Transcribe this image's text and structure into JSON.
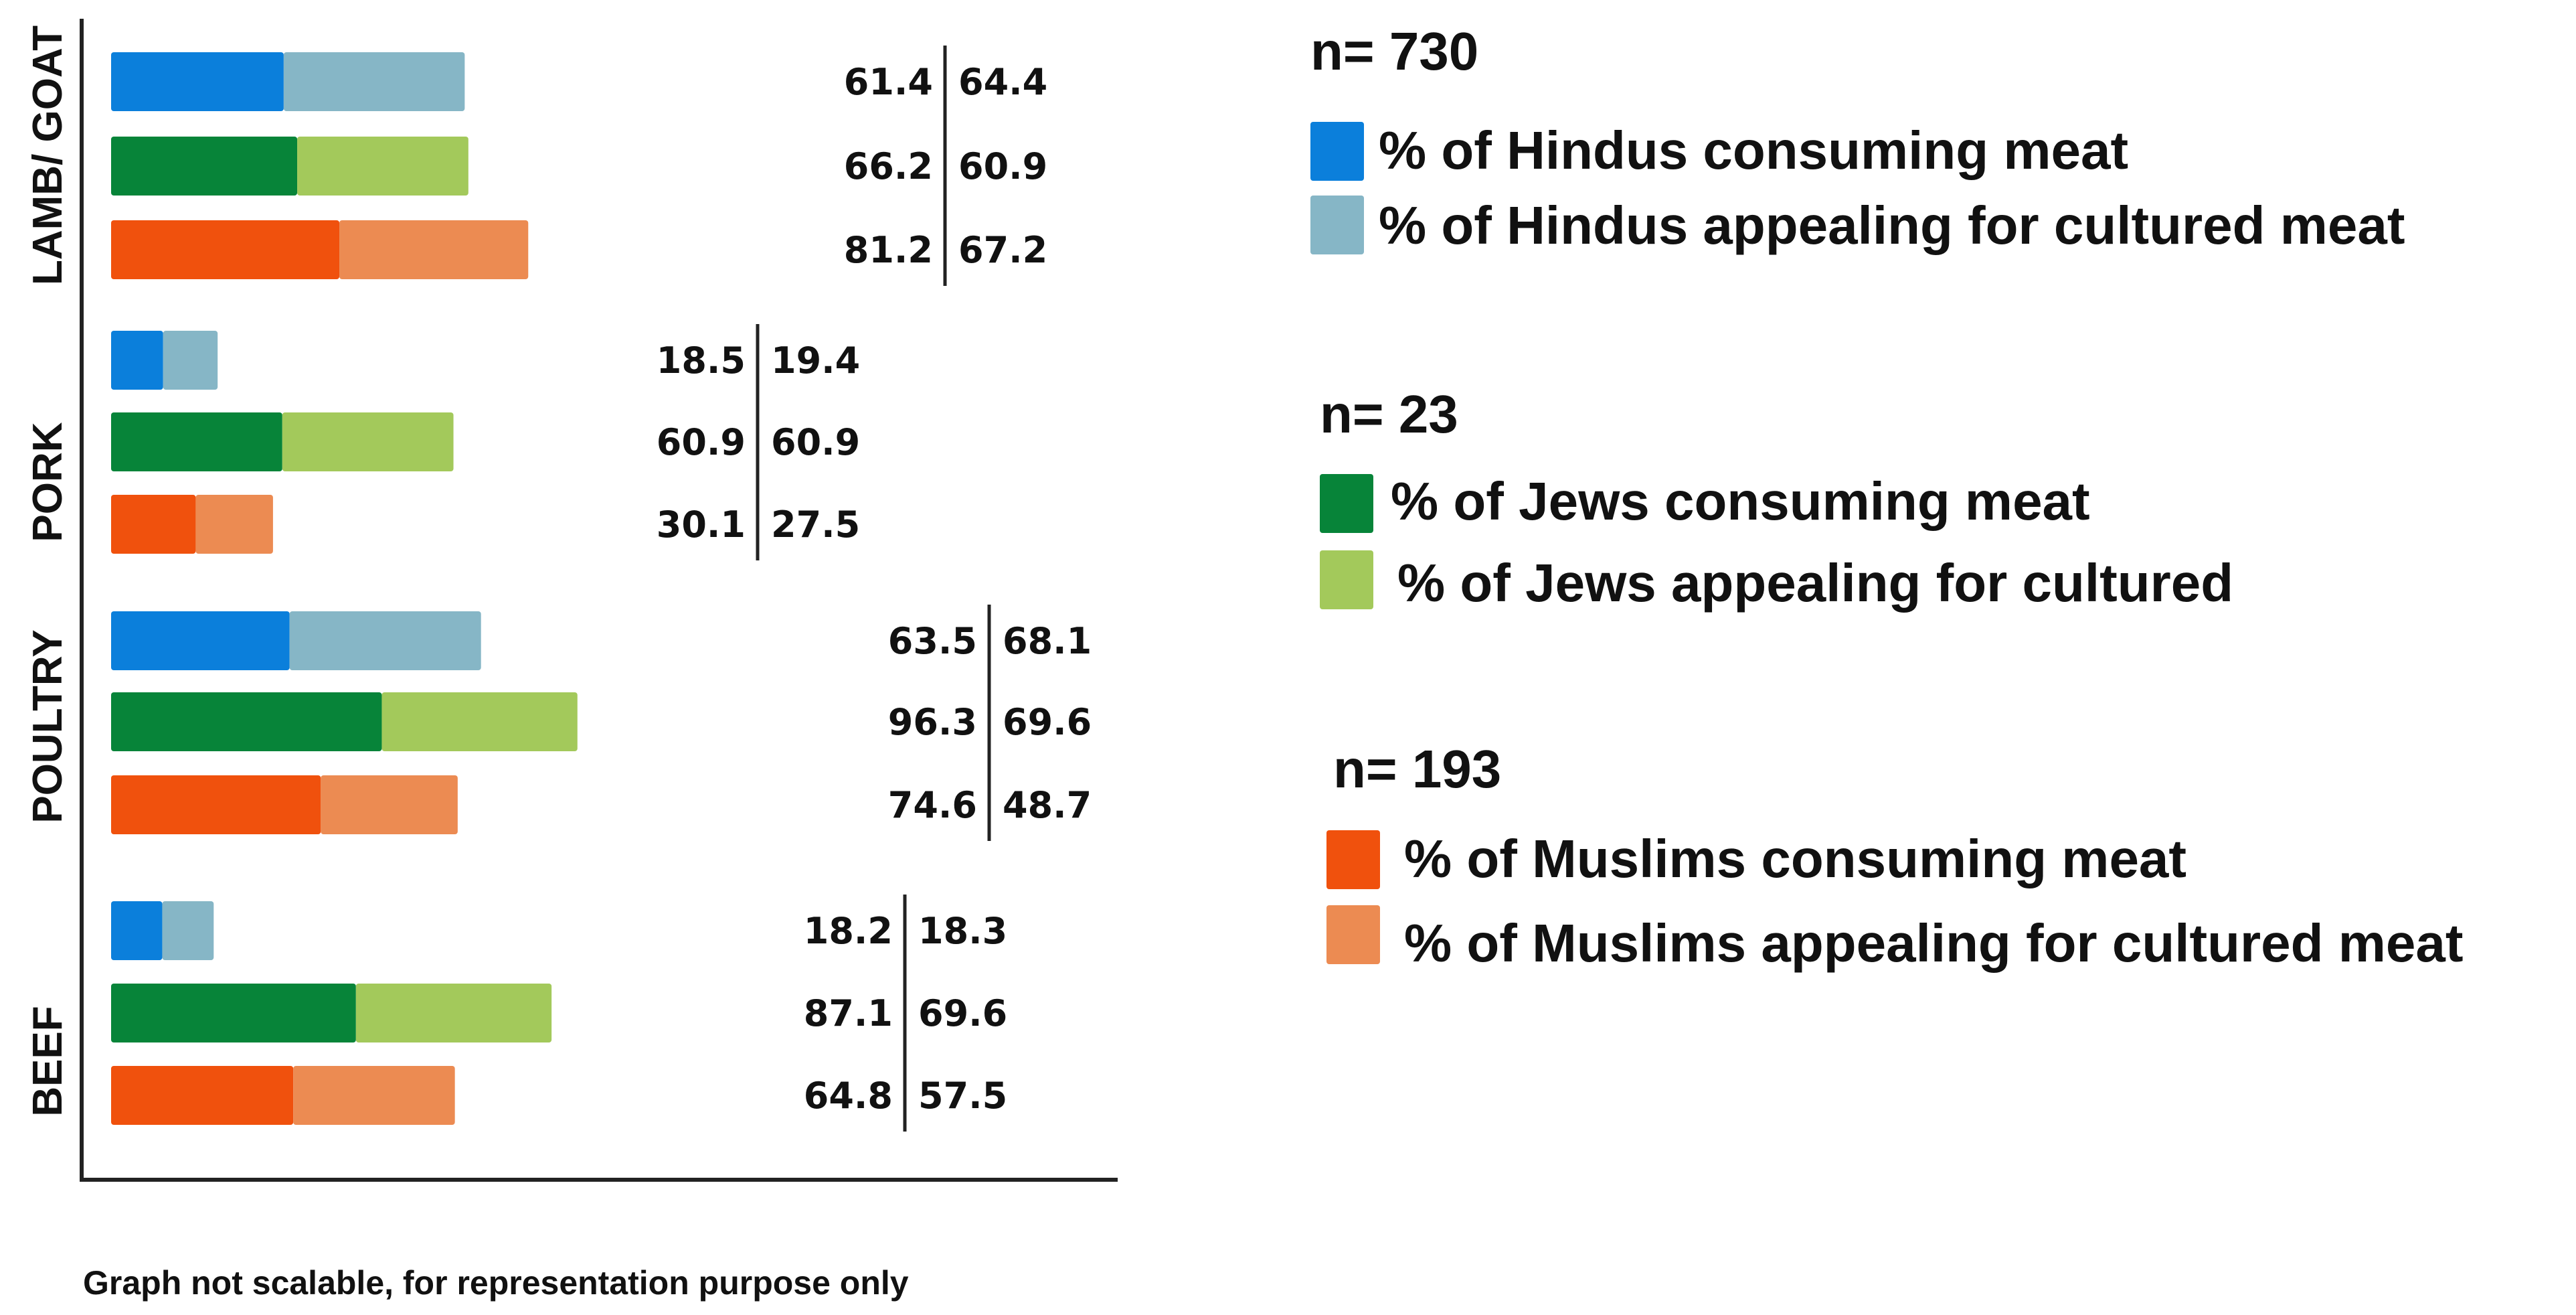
{
  "chart_data": {
    "type": "bar",
    "orientation": "horizontal",
    "stacked_pairs": true,
    "categories": [
      "LAMB/ GOAT",
      "PORK",
      "POULTRY",
      "BEEF"
    ],
    "groups": [
      {
        "name": "Hindus",
        "n_label": "n= 730",
        "consuming_label": "% of Hindus consuming meat",
        "appealing_label": "% of Hindus appealing for cultured meat",
        "colors": {
          "consuming": "#0B7FDB",
          "appealing": "#86B6C6"
        },
        "consuming": [
          61.4,
          18.5,
          63.5,
          18.2
        ],
        "appealing": [
          64.4,
          19.4,
          68.1,
          18.3
        ]
      },
      {
        "name": "Jews",
        "n_label": "n= 23",
        "consuming_label": "% of Jews consuming meat",
        "appealing_label": "% of Jews appealing for cultured",
        "colors": {
          "consuming": "#078439",
          "appealing": "#A3C95B"
        },
        "consuming": [
          66.2,
          60.9,
          96.3,
          87.1
        ],
        "appealing": [
          60.9,
          60.9,
          69.6,
          69.6
        ]
      },
      {
        "name": "Muslims",
        "n_label": "n= 193",
        "consuming_label": "% of Muslims consuming meat",
        "appealing_label": "% of Muslims appealing for cultured meat",
        "colors": {
          "consuming": "#F0510D",
          "appealing": "#EC8B52"
        },
        "consuming": [
          81.2,
          30.1,
          74.6,
          64.8
        ],
        "appealing": [
          67.2,
          27.5,
          48.7,
          57.5
        ]
      }
    ],
    "value_labels": {
      "consuming": [
        [
          "61.4",
          "66.2",
          "81.2"
        ],
        [
          "18.5",
          "60.9",
          "30.1"
        ],
        [
          "63.5",
          "96.3",
          "74.6"
        ],
        [
          "18.2",
          "87.1",
          "64.8"
        ]
      ],
      "appealing": [
        [
          "64.4",
          "60.9",
          "67.2"
        ],
        [
          "19.4",
          "60.9",
          "27.5"
        ],
        [
          "68.1",
          "69.6",
          "48.7"
        ],
        [
          "18.3",
          "69.6",
          "57.5"
        ]
      ]
    },
    "legend_position": "right",
    "footnote": "Graph not scalable, for representation purpose only"
  }
}
